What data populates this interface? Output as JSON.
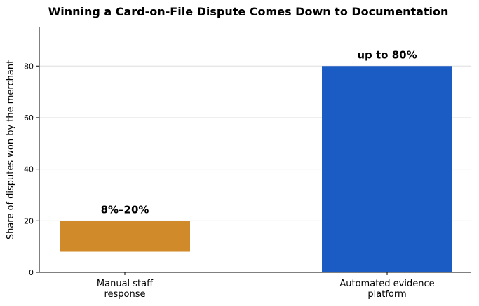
{
  "chart_data": {
    "type": "bar",
    "title": "Winning a Card-on-File Dispute Comes Down to Documentation",
    "xlabel": "",
    "ylabel": "Share of disputes won by the merchant",
    "ylim": [
      0,
      95
    ],
    "yticks": [
      0,
      20,
      40,
      60,
      80
    ],
    "grid": true,
    "categories": [
      [
        "Manual staff",
        "response"
      ],
      [
        "Automated evidence",
        "platform"
      ]
    ],
    "bars": [
      {
        "low": 8,
        "high": 20,
        "color": "#d18a2a",
        "label": "8%–20%"
      },
      {
        "low": 0,
        "high": 80,
        "color": "#1a5bc4",
        "label": "up to 80%"
      }
    ]
  }
}
